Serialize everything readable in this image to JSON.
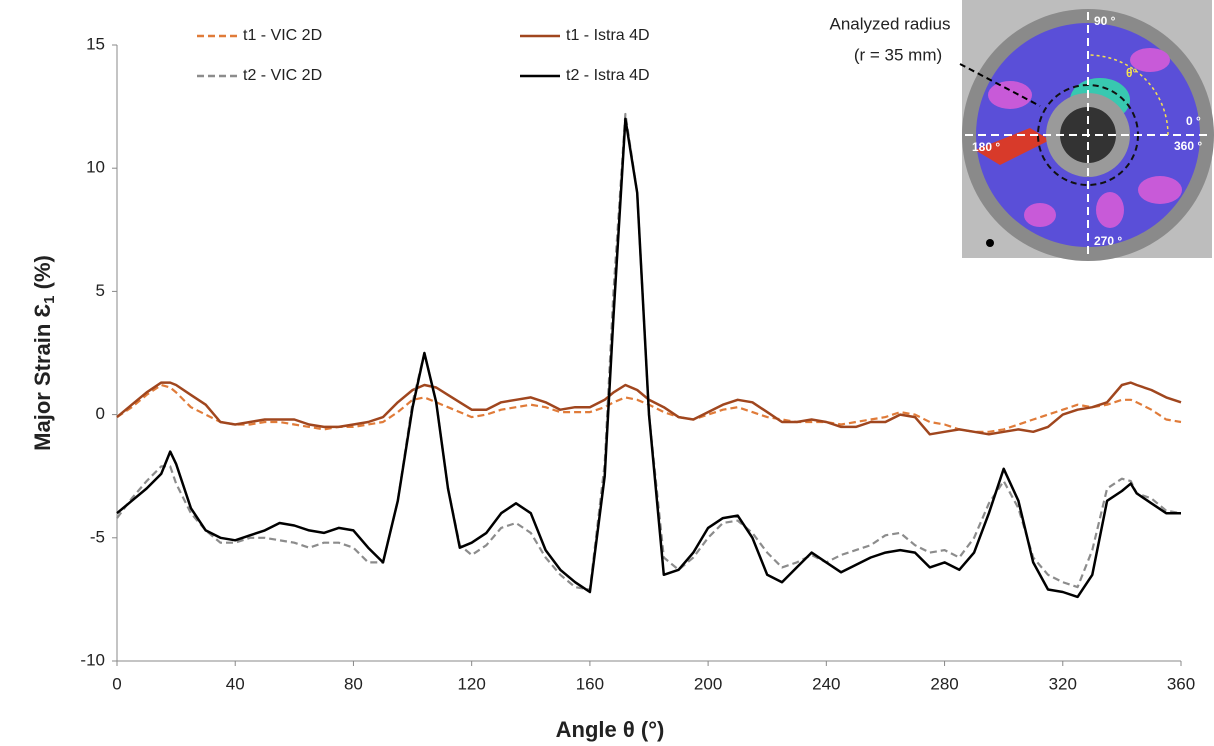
{
  "chart_data": {
    "type": "line",
    "xlabel": "Angle θ (°)",
    "ylabel": [
      "Major Strain Ɛ",
      "1",
      " (%)"
    ],
    "xlim": [
      0,
      360
    ],
    "xticks": [
      0,
      40,
      80,
      120,
      160,
      200,
      240,
      280,
      320,
      360
    ],
    "ylim": [
      -10,
      15
    ],
    "yticks": [
      -10,
      -5,
      0,
      5,
      10,
      15
    ],
    "grid": false,
    "x": [
      0,
      5,
      10,
      15,
      18,
      20,
      25,
      30,
      35,
      40,
      45,
      50,
      55,
      60,
      65,
      70,
      75,
      80,
      85,
      90,
      95,
      100,
      104,
      108,
      112,
      116,
      120,
      125,
      130,
      135,
      140,
      145,
      150,
      155,
      160,
      165,
      168,
      172,
      176,
      180,
      185,
      190,
      195,
      200,
      205,
      210,
      215,
      220,
      225,
      230,
      235,
      240,
      245,
      250,
      255,
      260,
      265,
      270,
      275,
      280,
      285,
      290,
      295,
      300,
      305,
      310,
      315,
      320,
      325,
      330,
      335,
      340,
      343,
      345,
      350,
      355,
      360
    ],
    "series": [
      {
        "name": "t1 - VIC 2D",
        "color": "#E07B39",
        "dashed": true,
        "values": [
          -0.1,
          0.3,
          0.8,
          1.2,
          1.1,
          0.9,
          0.3,
          0,
          -0.3,
          -0.4,
          -0.4,
          -0.3,
          -0.3,
          -0.4,
          -0.5,
          -0.6,
          -0.5,
          -0.5,
          -0.4,
          -0.3,
          0.1,
          0.6,
          0.7,
          0.5,
          0.3,
          0.1,
          -0.1,
          0,
          0.2,
          0.3,
          0.4,
          0.3,
          0.1,
          0.1,
          0.1,
          0.3,
          0.5,
          0.7,
          0.6,
          0.4,
          0.1,
          -0.1,
          -0.2,
          0,
          0.2,
          0.3,
          0.1,
          -0.1,
          -0.2,
          -0.3,
          -0.3,
          -0.3,
          -0.4,
          -0.3,
          -0.2,
          -0.1,
          0.1,
          0,
          -0.3,
          -0.4,
          -0.6,
          -0.7,
          -0.7,
          -0.6,
          -0.4,
          -0.2,
          0,
          0.2,
          0.4,
          0.3,
          0.4,
          0.6,
          0.6,
          0.5,
          0.2,
          -0.2,
          -0.3
        ]
      },
      {
        "name": "t1 - Istra 4D",
        "color": "#A0461E",
        "dashed": false,
        "values": [
          -0.1,
          0.4,
          0.9,
          1.3,
          1.3,
          1.2,
          0.8,
          0.4,
          -0.3,
          -0.4,
          -0.3,
          -0.2,
          -0.2,
          -0.2,
          -0.4,
          -0.5,
          -0.5,
          -0.4,
          -0.3,
          -0.1,
          0.5,
          1.0,
          1.2,
          1.1,
          0.8,
          0.5,
          0.2,
          0.2,
          0.5,
          0.6,
          0.7,
          0.5,
          0.2,
          0.3,
          0.3,
          0.6,
          0.9,
          1.2,
          1.0,
          0.6,
          0.3,
          -0.1,
          -0.2,
          0.1,
          0.4,
          0.6,
          0.5,
          0.1,
          -0.3,
          -0.3,
          -0.2,
          -0.3,
          -0.5,
          -0.5,
          -0.3,
          -0.3,
          0,
          -0.1,
          -0.8,
          -0.7,
          -0.6,
          -0.7,
          -0.8,
          -0.7,
          -0.6,
          -0.7,
          -0.5,
          0,
          0.2,
          0.3,
          0.5,
          1.2,
          1.3,
          1.2,
          1.0,
          0.7,
          0.5
        ]
      },
      {
        "name": "t2 - VIC 2D",
        "color": "#8C8C8C",
        "dashed": true,
        "values": [
          -4.2,
          -3.4,
          -2.7,
          -2.1,
          -2.1,
          -2.8,
          -4.0,
          -4.7,
          -5.2,
          -5.2,
          -5.0,
          -5.0,
          -5.1,
          -5.2,
          -5.4,
          -5.2,
          -5.2,
          -5.4,
          -6.0,
          -6.0,
          -3.5,
          0.5,
          2.5,
          0.5,
          -3.0,
          -5.3,
          -5.7,
          -5.3,
          -4.6,
          -4.4,
          -4.8,
          -5.8,
          -6.5,
          -7.0,
          -7.1,
          -2.0,
          5,
          12.2,
          9.0,
          0,
          -5.8,
          -6.3,
          -5.8,
          -5.0,
          -4.4,
          -4.3,
          -4.8,
          -5.6,
          -6.2,
          -6.0,
          -5.7,
          -6.0,
          -5.7,
          -5.5,
          -5.3,
          -4.9,
          -4.8,
          -5.3,
          -5.6,
          -5.5,
          -5.8,
          -5.0,
          -3.6,
          -2.7,
          -3.8,
          -5.8,
          -6.5,
          -6.8,
          -7.0,
          -5.5,
          -3.0,
          -2.6,
          -2.7,
          -3.2,
          -3.4,
          -3.9,
          -4.0
        ]
      },
      {
        "name": "t2 - Istra 4D",
        "color": "#000000",
        "dashed": false,
        "values": [
          -4.0,
          -3.5,
          -3.0,
          -2.4,
          -1.5,
          -2.0,
          -3.8,
          -4.7,
          -5.0,
          -5.1,
          -4.9,
          -4.7,
          -4.4,
          -4.5,
          -4.7,
          -4.8,
          -4.6,
          -4.7,
          -5.4,
          -6.0,
          -3.5,
          0.3,
          2.5,
          0.5,
          -3.0,
          -5.4,
          -5.2,
          -4.8,
          -4.0,
          -3.6,
          -4.0,
          -5.5,
          -6.3,
          -6.8,
          -7.2,
          -2.5,
          4,
          12.0,
          9.0,
          0,
          -6.5,
          -6.3,
          -5.6,
          -4.6,
          -4.2,
          -4.1,
          -5.0,
          -6.5,
          -6.8,
          -6.2,
          -5.6,
          -6.0,
          -6.4,
          -6.1,
          -5.8,
          -5.6,
          -5.5,
          -5.6,
          -6.2,
          -6.0,
          -6.3,
          -5.6,
          -4.0,
          -2.2,
          -3.5,
          -6.0,
          -7.1,
          -7.2,
          -7.4,
          -6.5,
          -3.5,
          -3.1,
          -2.8,
          -3.2,
          -3.6,
          -4.0,
          -4.0
        ]
      }
    ],
    "annotations": {
      "callout": [
        "Analyzed radius",
        "(r = 35 mm)"
      ],
      "angle_labels": [
        "90 °",
        "θ°",
        "0 °",
        "360 °",
        "180 °",
        "270 °"
      ]
    }
  }
}
